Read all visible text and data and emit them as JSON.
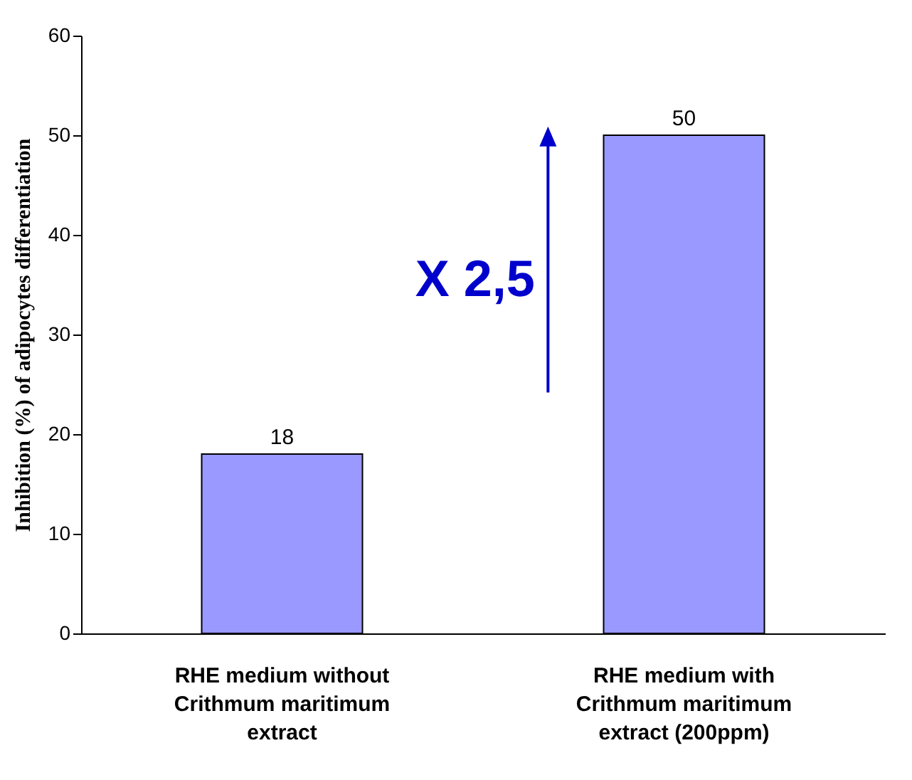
{
  "chart_data": {
    "type": "bar",
    "ylabel": "Inhibition (%) of adipocytes differentiation",
    "categories": [
      "RHE medium without Crithmum maritimum extract",
      "RHE medium with Crithmum maritimum extract (200ppm)"
    ],
    "values": [
      18,
      50
    ],
    "color": "#9999ff",
    "ylim": [
      0,
      60
    ],
    "yticks": [
      0,
      10,
      20,
      30,
      40,
      50,
      60
    ],
    "grid": false,
    "data_labels": true,
    "annotations": [
      "X 2,5"
    ]
  }
}
